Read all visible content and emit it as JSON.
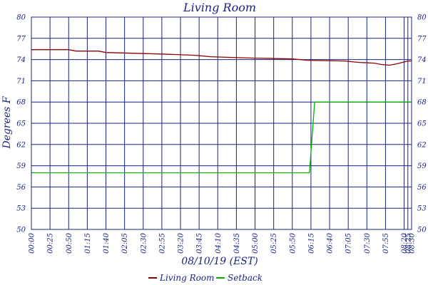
{
  "chart_data": {
    "type": "line",
    "title": "Living Room",
    "xlabel": "08/10/19 (EST)",
    "ylabel": "Degrees F",
    "x_tick_labels": [
      "00:00",
      "00:25",
      "00:50",
      "01:15",
      "01:40",
      "02:05",
      "02:30",
      "02:55",
      "03:20",
      "03:45",
      "04:10",
      "04:35",
      "05:00",
      "05:25",
      "05:50",
      "06:15",
      "06:40",
      "07:05",
      "07:30",
      "07:55",
      "08:20",
      "08:25",
      "08:30"
    ],
    "y_tick_labels": [
      "50",
      "53",
      "56",
      "59",
      "62",
      "65",
      "68",
      "71",
      "74",
      "77",
      "80"
    ],
    "xlim": [
      0,
      510
    ],
    "ylim": [
      50,
      80
    ],
    "grid": true,
    "legend_position": "bottom",
    "colors": {
      "axis": "#1a237e",
      "grid": "#1a237e",
      "living_room": "#8b0000",
      "setback": "#00b000"
    },
    "series": [
      {
        "name": "Living Room",
        "color": "#8b0000",
        "points": [
          [
            0,
            75.4
          ],
          [
            50,
            75.4
          ],
          [
            60,
            75.2
          ],
          [
            90,
            75.2
          ],
          [
            100,
            75.0
          ],
          [
            170,
            74.8
          ],
          [
            220,
            74.6
          ],
          [
            240,
            74.4
          ],
          [
            300,
            74.2
          ],
          [
            350,
            74.1
          ],
          [
            370,
            73.9
          ],
          [
            420,
            73.8
          ],
          [
            440,
            73.6
          ],
          [
            460,
            73.5
          ],
          [
            470,
            73.3
          ],
          [
            480,
            73.2
          ],
          [
            490,
            73.4
          ],
          [
            505,
            73.8
          ],
          [
            510,
            73.8
          ]
        ]
      },
      {
        "name": "Setback",
        "color": "#00b000",
        "points": [
          [
            0,
            58.0
          ],
          [
            373,
            58.0
          ],
          [
            380,
            68.0
          ],
          [
            510,
            68.0
          ]
        ]
      }
    ]
  }
}
